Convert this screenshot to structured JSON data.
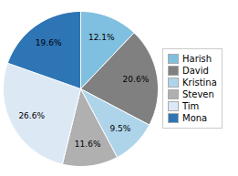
{
  "chart_data": {
    "type": "pie",
    "categories": [
      "Harish",
      "David",
      "Kristina",
      "Steven",
      "Tim",
      "Mona"
    ],
    "values": [
      12.1,
      20.6,
      9.5,
      11.6,
      26.6,
      19.6
    ],
    "value_labels": [
      "12.1%",
      "20.6%",
      "9.5%",
      "11.6%",
      "26.6%",
      "19.6%"
    ],
    "colors": [
      "#7fbfdf",
      "#808080",
      "#aed4ea",
      "#b0b0b0",
      "#dce9f5",
      "#2e75b6"
    ],
    "data_labels": true,
    "legend": "right"
  }
}
